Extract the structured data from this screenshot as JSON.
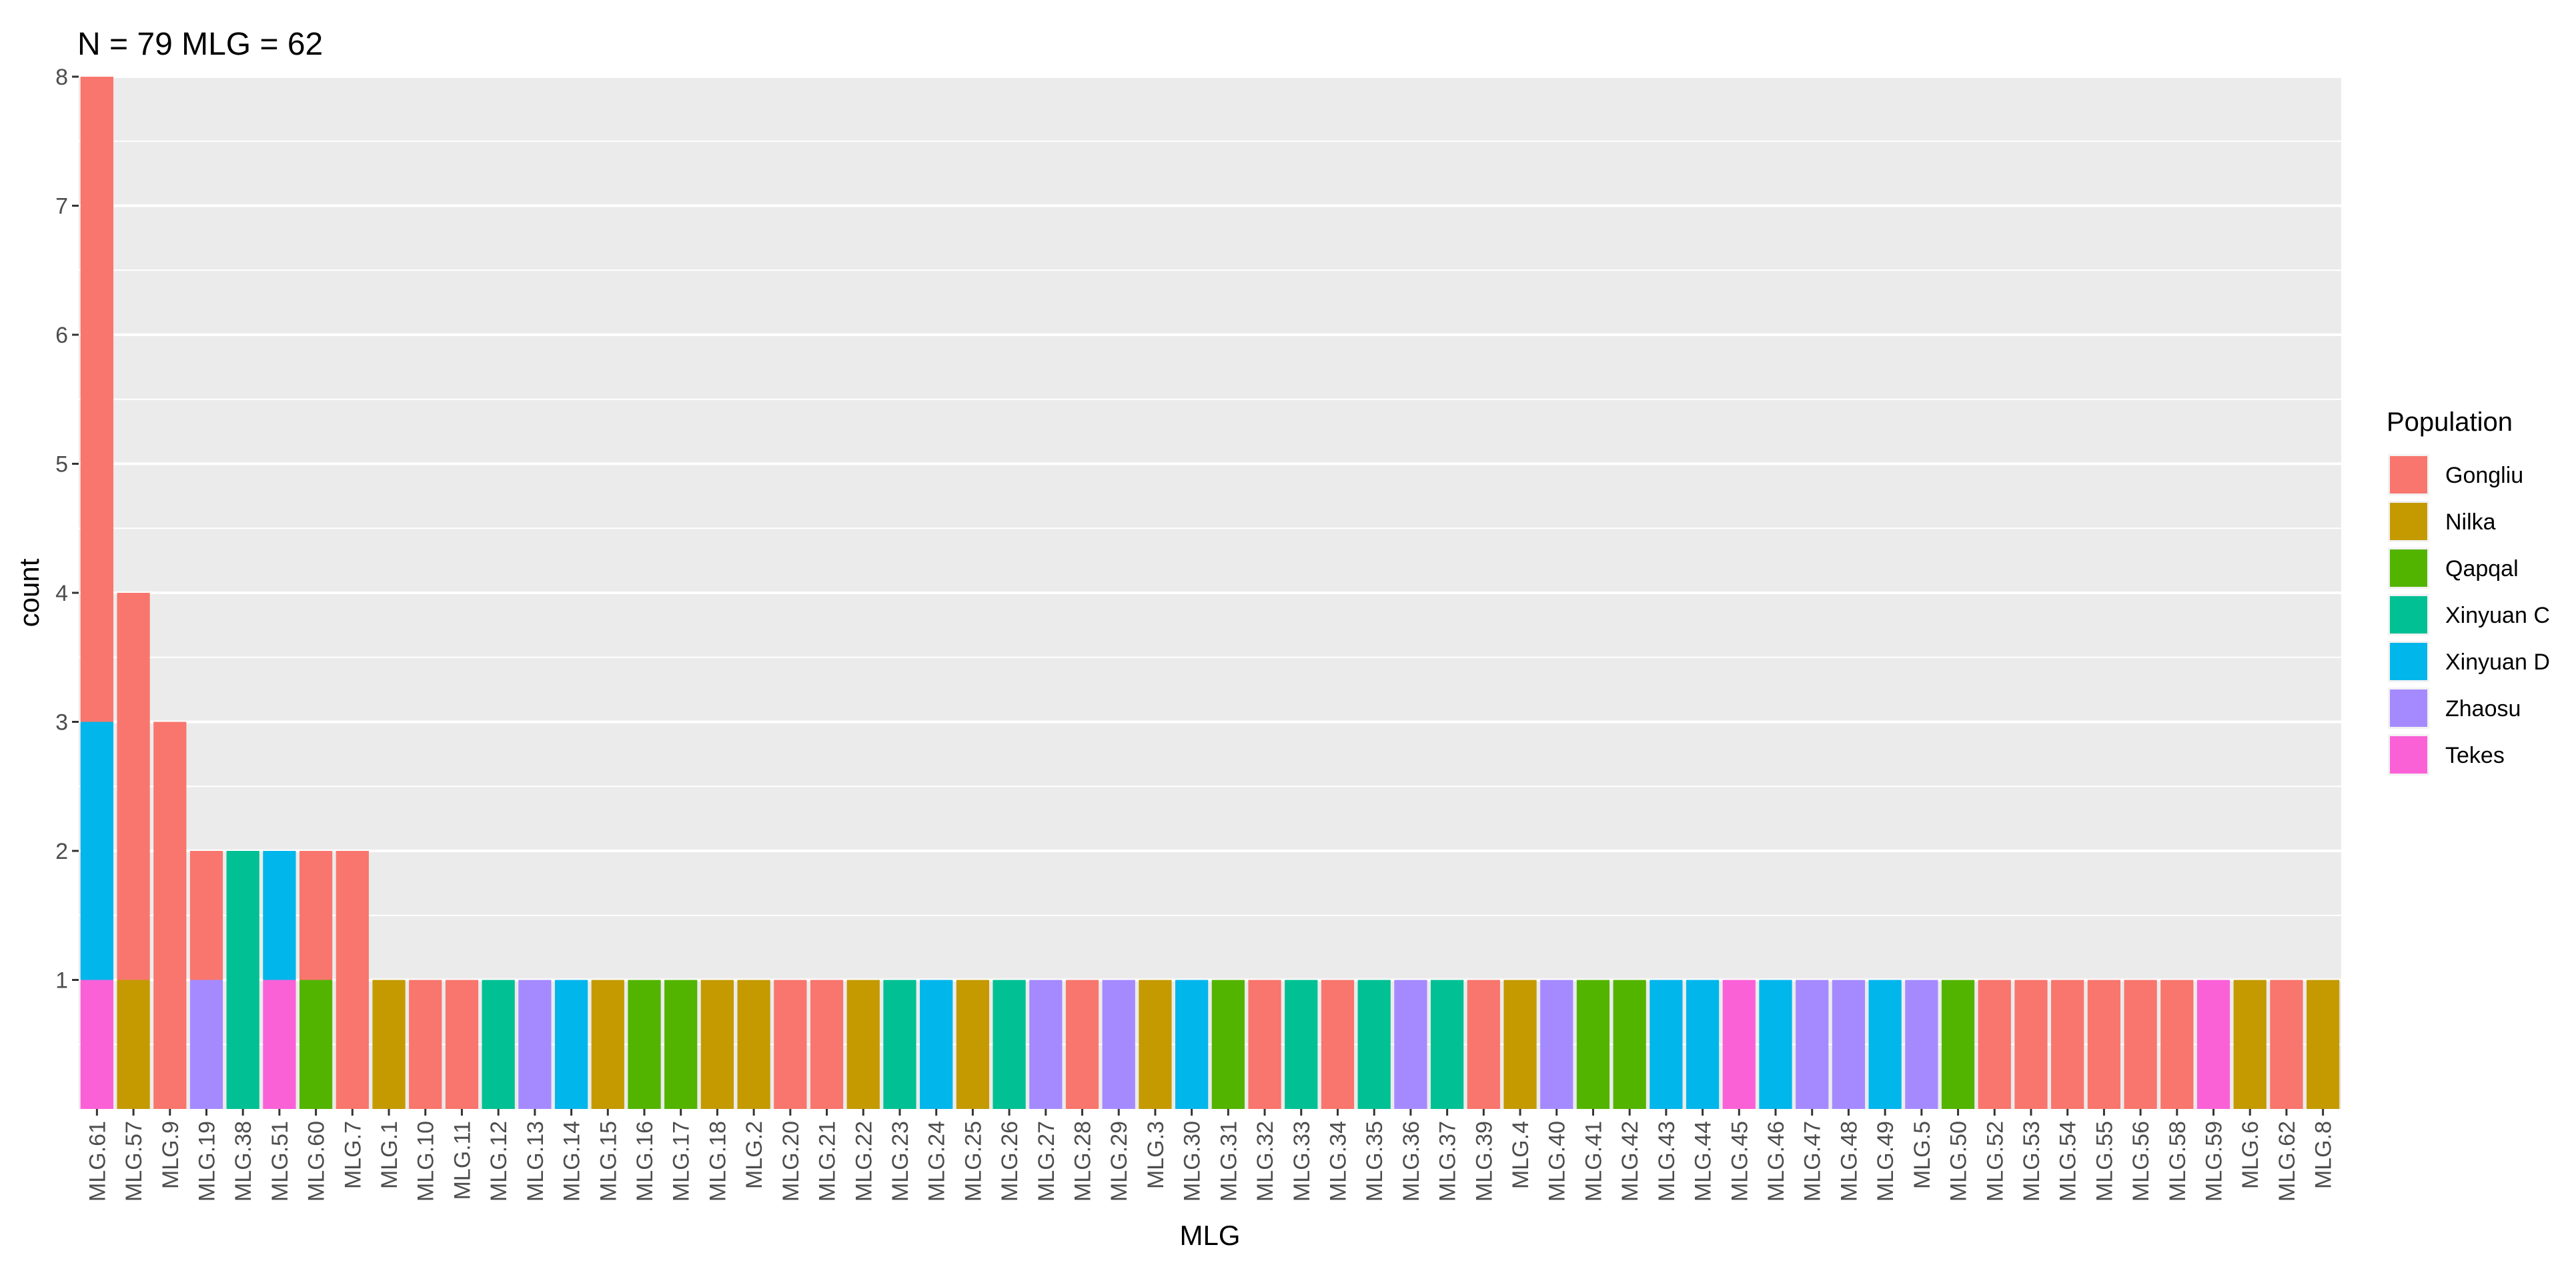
{
  "chart_data": {
    "type": "bar",
    "stacked": true,
    "title": "N = 79 MLG = 62",
    "xlabel": "MLG",
    "ylabel": "count",
    "ylim": [
      0,
      8
    ],
    "yticks": [
      1,
      2,
      3,
      4,
      5,
      6,
      7,
      8
    ],
    "grid": true,
    "legend_position": "right",
    "legend": {
      "title": "Population",
      "entries": [
        {
          "name": "Gongliu",
          "color": "#F8766D"
        },
        {
          "name": "Nilka",
          "color": "#C49A00"
        },
        {
          "name": "Qapqal",
          "color": "#53B400"
        },
        {
          "name": "Xinyuan C",
          "color": "#00C094"
        },
        {
          "name": "Xinyuan D",
          "color": "#00B6EB"
        },
        {
          "name": "Zhaosu",
          "color": "#A58AFF"
        },
        {
          "name": "Tekes",
          "color": "#FB61D7"
        }
      ]
    },
    "categories": [
      "MLG.61",
      "MLG.57",
      "MLG.9",
      "MLG.19",
      "MLG.38",
      "MLG.51",
      "MLG.60",
      "MLG.7",
      "MLG.1",
      "MLG.10",
      "MLG.11",
      "MLG.12",
      "MLG.13",
      "MLG.14",
      "MLG.15",
      "MLG.16",
      "MLG.17",
      "MLG.18",
      "MLG.2",
      "MLG.20",
      "MLG.21",
      "MLG.22",
      "MLG.23",
      "MLG.24",
      "MLG.25",
      "MLG.26",
      "MLG.27",
      "MLG.28",
      "MLG.29",
      "MLG.3",
      "MLG.30",
      "MLG.31",
      "MLG.32",
      "MLG.33",
      "MLG.34",
      "MLG.35",
      "MLG.36",
      "MLG.37",
      "MLG.39",
      "MLG.4",
      "MLG.40",
      "MLG.41",
      "MLG.42",
      "MLG.43",
      "MLG.44",
      "MLG.45",
      "MLG.46",
      "MLG.47",
      "MLG.48",
      "MLG.49",
      "MLG.5",
      "MLG.50",
      "MLG.52",
      "MLG.53",
      "MLG.54",
      "MLG.55",
      "MLG.56",
      "MLG.58",
      "MLG.59",
      "MLG.6",
      "MLG.62",
      "MLG.8"
    ],
    "series": [
      {
        "name": "Gongliu",
        "values": [
          5,
          3,
          3,
          1,
          0,
          0,
          1,
          2,
          0,
          1,
          1,
          0,
          0,
          0,
          0,
          0,
          0,
          0,
          0,
          1,
          1,
          0,
          0,
          0,
          0,
          0,
          0,
          1,
          0,
          0,
          0,
          0,
          1,
          0,
          1,
          0,
          0,
          0,
          1,
          0,
          0,
          0,
          0,
          0,
          0,
          0,
          0,
          0,
          0,
          0,
          0,
          0,
          1,
          1,
          1,
          1,
          1,
          1,
          0,
          0,
          1,
          0
        ]
      },
      {
        "name": "Nilka",
        "values": [
          0,
          1,
          0,
          0,
          0,
          0,
          0,
          0,
          1,
          0,
          0,
          0,
          0,
          0,
          1,
          0,
          0,
          1,
          1,
          0,
          0,
          1,
          0,
          0,
          1,
          0,
          0,
          0,
          0,
          1,
          0,
          0,
          0,
          0,
          0,
          0,
          0,
          0,
          0,
          1,
          0,
          0,
          0,
          0,
          0,
          0,
          0,
          0,
          0,
          0,
          0,
          0,
          0,
          0,
          0,
          0,
          0,
          0,
          0,
          1,
          0,
          1
        ]
      },
      {
        "name": "Qapqal",
        "values": [
          0,
          0,
          0,
          0,
          0,
          0,
          1,
          0,
          0,
          0,
          0,
          0,
          0,
          0,
          0,
          1,
          1,
          0,
          0,
          0,
          0,
          0,
          0,
          0,
          0,
          0,
          0,
          0,
          0,
          0,
          0,
          1,
          0,
          0,
          0,
          0,
          0,
          0,
          0,
          0,
          0,
          1,
          1,
          0,
          0,
          0,
          0,
          0,
          0,
          0,
          0,
          1,
          0,
          0,
          0,
          0,
          0,
          0,
          0,
          0,
          0,
          0
        ]
      },
      {
        "name": "Xinyuan C",
        "values": [
          0,
          0,
          0,
          0,
          2,
          0,
          0,
          0,
          0,
          0,
          0,
          1,
          0,
          0,
          0,
          0,
          0,
          0,
          0,
          0,
          0,
          0,
          1,
          0,
          0,
          1,
          0,
          0,
          0,
          0,
          0,
          0,
          0,
          1,
          0,
          1,
          0,
          1,
          0,
          0,
          0,
          0,
          0,
          0,
          0,
          0,
          0,
          0,
          0,
          0,
          0,
          0,
          0,
          0,
          0,
          0,
          0,
          0,
          0,
          0,
          0,
          0
        ]
      },
      {
        "name": "Xinyuan D",
        "values": [
          2,
          0,
          0,
          0,
          0,
          1,
          0,
          0,
          0,
          0,
          0,
          0,
          0,
          1,
          0,
          0,
          0,
          0,
          0,
          0,
          0,
          0,
          0,
          1,
          0,
          0,
          0,
          0,
          0,
          0,
          1,
          0,
          0,
          0,
          0,
          0,
          0,
          0,
          0,
          0,
          0,
          0,
          0,
          1,
          1,
          0,
          1,
          0,
          0,
          1,
          0,
          0,
          0,
          0,
          0,
          0,
          0,
          0,
          0,
          0,
          0,
          0
        ]
      },
      {
        "name": "Zhaosu",
        "values": [
          0,
          0,
          0,
          1,
          0,
          0,
          0,
          0,
          0,
          0,
          0,
          0,
          1,
          0,
          0,
          0,
          0,
          0,
          0,
          0,
          0,
          0,
          0,
          0,
          0,
          0,
          1,
          0,
          1,
          0,
          0,
          0,
          0,
          0,
          0,
          0,
          1,
          0,
          0,
          0,
          1,
          0,
          0,
          0,
          0,
          0,
          0,
          1,
          1,
          0,
          1,
          0,
          0,
          0,
          0,
          0,
          0,
          0,
          0,
          0,
          0,
          0
        ]
      },
      {
        "name": "Tekes",
        "values": [
          1,
          0,
          0,
          0,
          0,
          1,
          0,
          0,
          0,
          0,
          0,
          0,
          0,
          0,
          0,
          0,
          0,
          0,
          0,
          0,
          0,
          0,
          0,
          0,
          0,
          0,
          0,
          0,
          0,
          0,
          0,
          0,
          0,
          0,
          0,
          0,
          0,
          0,
          0,
          0,
          0,
          0,
          0,
          0,
          0,
          1,
          0,
          0,
          0,
          0,
          0,
          0,
          0,
          0,
          0,
          0,
          0,
          0,
          1,
          0,
          0,
          0
        ]
      }
    ],
    "stack_order_bottom_to_top": [
      "Tekes",
      "Zhaosu",
      "Xinyuan D",
      "Xinyuan C",
      "Qapqal",
      "Nilka",
      "Gongliu"
    ],
    "colors": {
      "panel_background": "#EBEBEB",
      "grid_line": "#FFFFFF",
      "axis_text": "#4D4D4D",
      "title_text": "#000000"
    }
  }
}
